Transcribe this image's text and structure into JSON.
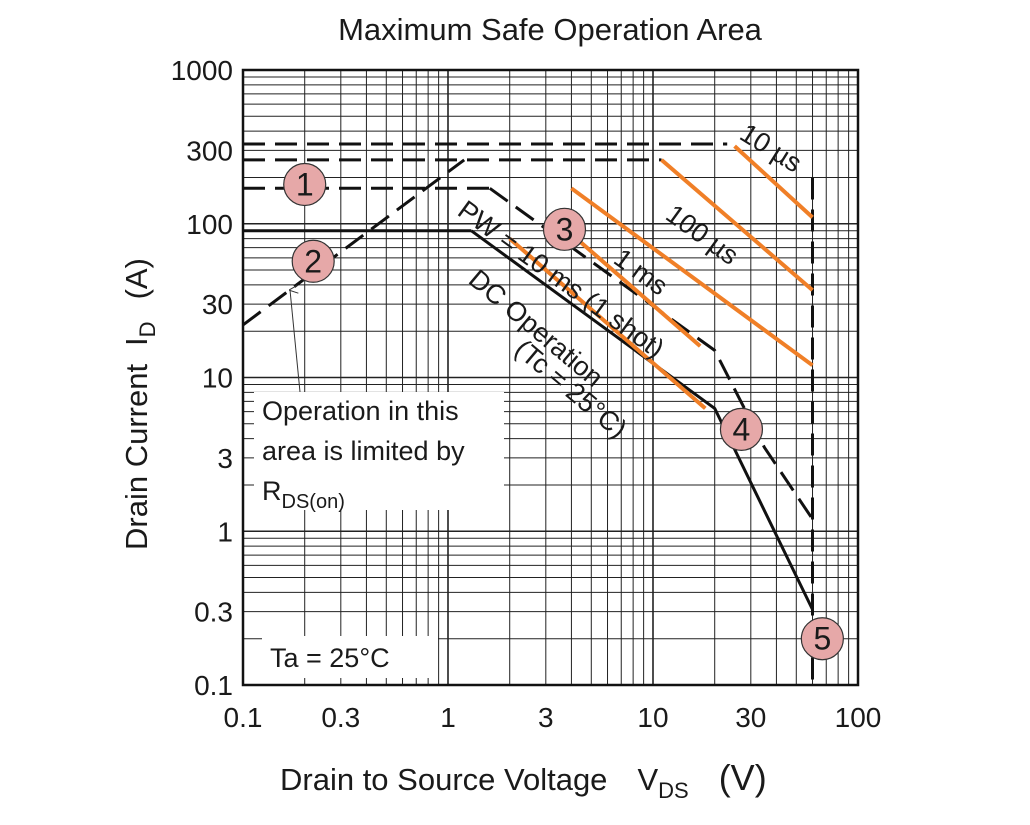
{
  "chart_data": {
    "type": "line",
    "title": "Maximum Safe Operation Area",
    "xlabel": {
      "main": "Drain to Source Voltage",
      "symbol": "V",
      "subscript": "DS",
      "unit": "(V)"
    },
    "ylabel": {
      "main": "Drain Current",
      "symbol": "I",
      "subscript": "D",
      "unit": "(A)"
    },
    "xscale": "log",
    "yscale": "log",
    "xlim": [
      0.1,
      100
    ],
    "ylim": [
      0.1,
      1000
    ],
    "xticks": [
      {
        "v": 0.1,
        "label": "0.1"
      },
      {
        "v": 0.3,
        "label": "0.3"
      },
      {
        "v": 1,
        "label": "1"
      },
      {
        "v": 3,
        "label": "3"
      },
      {
        "v": 10,
        "label": "10"
      },
      {
        "v": 30,
        "label": "30"
      },
      {
        "v": 100,
        "label": "100"
      }
    ],
    "yticks": [
      {
        "v": 0.1,
        "label": "0.1"
      },
      {
        "v": 0.3,
        "label": "0.3"
      },
      {
        "v": 1,
        "label": "1"
      },
      {
        "v": 3,
        "label": "3"
      },
      {
        "v": 10,
        "label": "10"
      },
      {
        "v": 30,
        "label": "30"
      },
      {
        "v": 100,
        "label": "100"
      },
      {
        "v": 300,
        "label": "300"
      },
      {
        "v": 1000,
        "label": "1000"
      }
    ],
    "grid": true,
    "series": [
      {
        "id": "rds-limit",
        "style": "dashed",
        "color": "#111111",
        "x": [
          0.1,
          1.2
        ],
        "y": [
          22,
          260
        ]
      },
      {
        "id": "limit-10us",
        "style": "dashed",
        "color": "#111111",
        "x": [
          0.1,
          23
        ],
        "y": [
          330,
          330
        ]
      },
      {
        "id": "limit-100us",
        "style": "dashed",
        "color": "#111111",
        "x": [
          0.1,
          11
        ],
        "y": [
          260,
          260
        ]
      },
      {
        "id": "limit-1ms",
        "style": "dashed",
        "color": "#111111",
        "x": [
          0.1,
          1.6
        ],
        "y": [
          170,
          170
        ]
      },
      {
        "id": "dc-limit",
        "style": "solid",
        "color": "#111111",
        "x": [
          0.1,
          1.3
        ],
        "y": [
          90,
          90
        ]
      },
      {
        "id": "boundary-10ms",
        "style": "dashed",
        "color": "#111111",
        "x": [
          1.6,
          20,
          35,
          60
        ],
        "y": [
          170,
          15,
          3.5,
          1.2
        ]
      },
      {
        "id": "boundary-dc",
        "style": "solid",
        "color": "#111111",
        "x": [
          1.3,
          20,
          60
        ],
        "y": [
          90,
          6.3,
          0.31
        ]
      },
      {
        "id": "voltage-limit",
        "style": "dashed",
        "color": "#111111",
        "x": [
          60,
          60
        ],
        "y": [
          200,
          0.1
        ]
      },
      {
        "id": "thermal-10us",
        "name": "10 µs",
        "style": "solid",
        "color": "#f07f27",
        "x": [
          25,
          60
        ],
        "y": [
          320,
          110
        ]
      },
      {
        "id": "thermal-100us",
        "name": "100 µs",
        "style": "solid",
        "color": "#f07f27",
        "x": [
          11,
          60
        ],
        "y": [
          260,
          37
        ]
      },
      {
        "id": "thermal-1ms",
        "name": "1 ms",
        "style": "solid",
        "color": "#f07f27",
        "x": [
          4,
          60
        ],
        "y": [
          170,
          12
        ]
      },
      {
        "id": "thermal-10ms",
        "name": "PW = 10 ms (1 shot)",
        "style": "solid",
        "color": "#f07f27",
        "x": [
          3.5,
          17
        ],
        "y": [
          100,
          16
        ]
      },
      {
        "id": "thermal-dc",
        "name": "DC Operation (Tc = 25°C)",
        "style": "solid",
        "color": "#f07f27",
        "x": [
          2,
          18
        ],
        "y": [
          80,
          6.3
        ]
      }
    ],
    "markers": [
      {
        "label": "1",
        "x": 0.2,
        "y": 180
      },
      {
        "label": "2",
        "x": 0.22,
        "y": 57
      },
      {
        "label": "3",
        "x": 3.7,
        "y": 92
      },
      {
        "label": "4",
        "x": 27,
        "y": 4.6
      },
      {
        "label": "5",
        "x": 67,
        "y": 0.2
      }
    ],
    "marker_color": "#e6a8a8",
    "annotations": {
      "curve_10us": "10 µs",
      "curve_100us": "100 µs",
      "curve_1ms": "1 ms",
      "curve_10ms": "PW = 10 ms (1 shot)",
      "curve_dc_1": "DC Operation",
      "curve_dc_2": "(Tc = 25°C)",
      "rds_note_1": "Operation in this",
      "rds_note_2": "area is limited by",
      "rds_note_symbol": "R",
      "rds_note_sub": "DS(on)",
      "ambient": "Ta = 25°C"
    }
  }
}
